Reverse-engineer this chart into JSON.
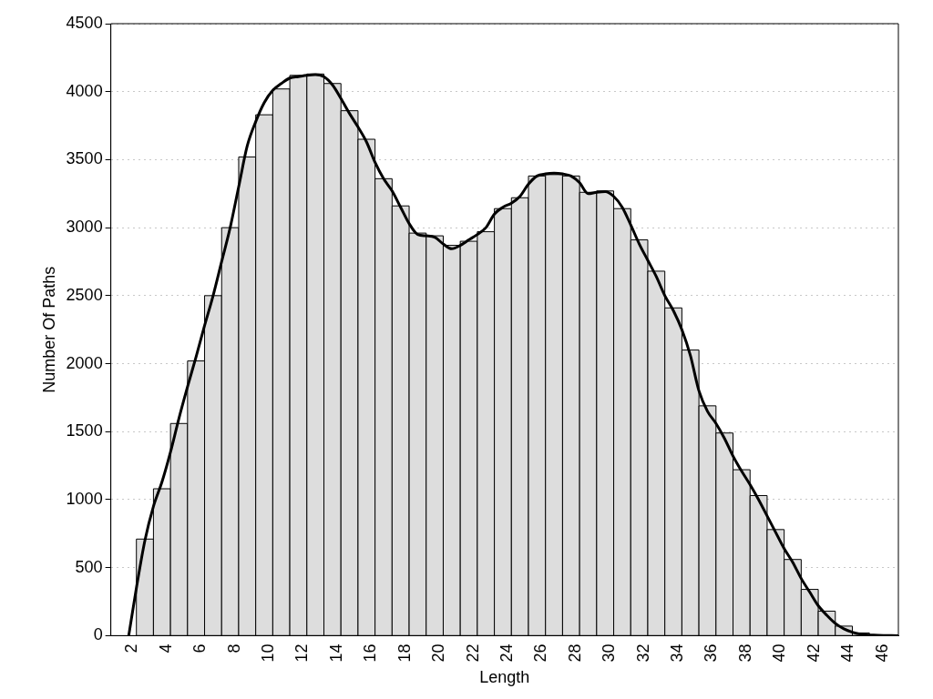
{
  "chart_data": {
    "type": "histogram",
    "xlabel": "Length",
    "ylabel": "Number Of Paths",
    "color": "#dddddd",
    "bins": [
      2.5,
      3.5,
      4.5,
      5.5,
      6.5,
      7.5,
      8.5,
      9.5,
      10.5,
      11.5,
      12.5,
      13.5,
      14.5,
      15.5,
      16.5,
      17.5,
      18.5,
      19.5,
      20.5,
      21.5,
      22.5,
      23.5,
      24.5,
      25.5,
      26.5,
      27.5,
      28.5,
      29.5,
      30.5,
      31.5,
      32.5,
      33.5,
      34.5,
      35.5,
      36.5,
      37.5,
      38.5,
      39.5,
      40.5,
      41.5,
      42.5,
      43.5,
      44.5,
      45.5
    ],
    "values": [
      710,
      1080,
      1560,
      2020,
      2500,
      3000,
      3520,
      3830,
      4020,
      4120,
      4130,
      4060,
      3860,
      3650,
      3360,
      3160,
      2960,
      2940,
      2870,
      2900,
      2970,
      3140,
      3220,
      3380,
      3390,
      3380,
      3260,
      3270,
      3140,
      2910,
      2680,
      2410,
      2100,
      1690,
      1490,
      1220,
      1030,
      780,
      560,
      340,
      180,
      70,
      20
    ],
    "series": [
      {
        "type": "line",
        "color": "#000000",
        "marker": "none",
        "x": [
          2.05,
          2.5,
          3,
          3.5,
          4,
          4.5,
          5,
          5.5,
          6,
          6.5,
          7,
          7.5,
          8,
          8.5,
          9,
          9.5,
          10,
          10.5,
          11,
          11.5,
          12,
          12.5,
          13,
          13.5,
          14,
          14.5,
          15,
          15.5,
          16,
          16.5,
          17,
          17.5,
          18,
          18.5,
          19,
          19.5,
          20,
          20.5,
          21,
          21.5,
          22,
          22.5,
          23,
          23.5,
          24,
          24.5,
          25,
          25.5,
          26,
          26.5,
          27,
          27.5,
          28,
          28.5,
          29,
          29.5,
          30,
          30.5,
          31,
          31.5,
          32,
          32.5,
          33,
          33.5,
          34,
          34.5,
          35,
          35.5,
          36,
          36.5,
          37,
          37.5,
          38,
          38.5,
          39,
          39.5,
          40,
          40.5,
          41,
          41.5,
          42,
          42.5,
          43,
          43.5,
          44,
          44.5,
          45,
          46,
          47.2
        ],
        "values": [
          0,
          350,
          700,
          950,
          1130,
          1350,
          1600,
          1830,
          2050,
          2280,
          2500,
          2750,
          3000,
          3300,
          3600,
          3780,
          3920,
          4010,
          4060,
          4100,
          4110,
          4120,
          4125,
          4110,
          4050,
          3950,
          3840,
          3740,
          3630,
          3480,
          3360,
          3270,
          3150,
          3030,
          2950,
          2940,
          2930,
          2880,
          2845,
          2870,
          2910,
          2950,
          3000,
          3100,
          3150,
          3180,
          3230,
          3320,
          3380,
          3395,
          3400,
          3395,
          3380,
          3330,
          3250,
          3260,
          3265,
          3230,
          3150,
          3020,
          2880,
          2760,
          2640,
          2500,
          2390,
          2250,
          2060,
          1800,
          1650,
          1560,
          1450,
          1320,
          1210,
          1110,
          1000,
          880,
          760,
          640,
          540,
          420,
          320,
          220,
          150,
          90,
          50,
          25,
          10,
          3,
          0
        ]
      }
    ],
    "xlim": [
      1,
      47.2
    ],
    "xticks": [
      2,
      4,
      6,
      8,
      10,
      12,
      14,
      16,
      18,
      20,
      22,
      24,
      26,
      28,
      30,
      32,
      34,
      36,
      38,
      40,
      42,
      44,
      46
    ],
    "ylim": [
      0,
      4500
    ],
    "yticks": [
      0,
      500,
      1000,
      1500,
      2000,
      2500,
      3000,
      3500,
      4000,
      4500
    ],
    "grid": "y",
    "legend": false
  }
}
